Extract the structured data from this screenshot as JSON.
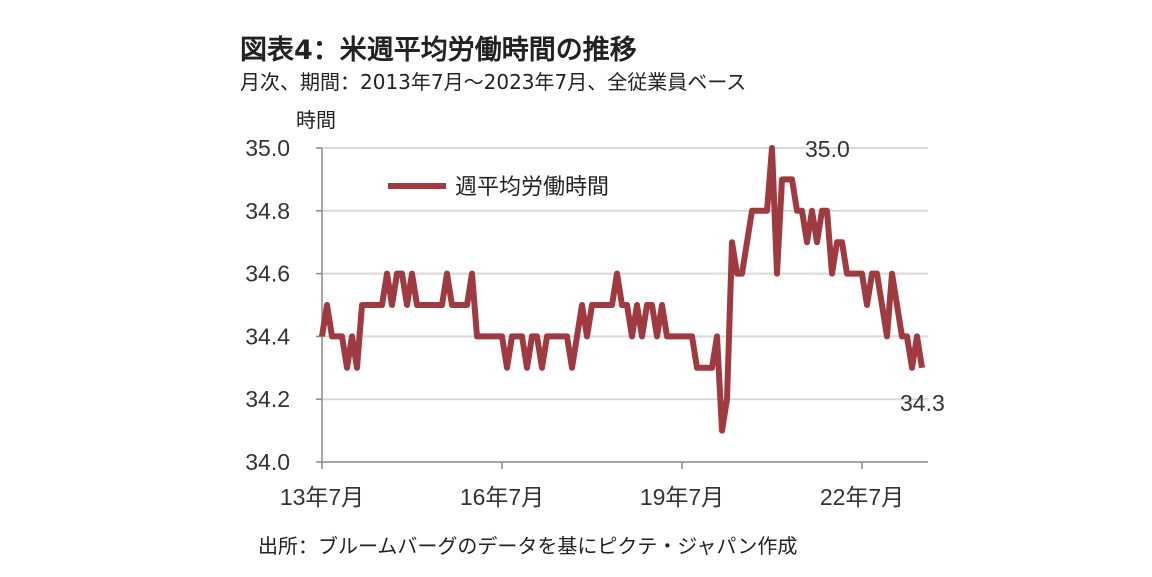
{
  "title": "図表4：米週平均労働時間の推移",
  "subtitle": "月次、期間：2013年7月～2023年7月、全従業員ベース",
  "source": "出所：ブルームバーグのデータを基にピクテ・ジャパン作成",
  "chart_data": {
    "type": "line",
    "title": "図表4：米週平均労働時間の推移",
    "ylabel": "時間",
    "xlabel": "",
    "ylim": [
      34.0,
      35.0
    ],
    "yticks": [
      "34.0",
      "34.2",
      "34.4",
      "34.6",
      "34.8",
      "35.0"
    ],
    "xticks": [
      {
        "index": 0,
        "label": "13年7月"
      },
      {
        "index": 36,
        "label": "16年7月"
      },
      {
        "index": 72,
        "label": "19年7月"
      },
      {
        "index": 108,
        "label": "22年7月"
      }
    ],
    "grid": true,
    "legend": "top-left",
    "x_start": "2013-07",
    "x_end": "2023-07",
    "series": [
      {
        "name": "週平均労働時間",
        "color": "#9e3a40",
        "values": [
          34.4,
          34.5,
          34.4,
          34.4,
          34.4,
          34.3,
          34.4,
          34.3,
          34.5,
          34.5,
          34.5,
          34.5,
          34.5,
          34.6,
          34.5,
          34.6,
          34.6,
          34.5,
          34.6,
          34.5,
          34.5,
          34.5,
          34.5,
          34.5,
          34.5,
          34.6,
          34.5,
          34.5,
          34.5,
          34.5,
          34.6,
          34.4,
          34.4,
          34.4,
          34.4,
          34.4,
          34.4,
          34.3,
          34.4,
          34.4,
          34.4,
          34.3,
          34.4,
          34.4,
          34.3,
          34.4,
          34.4,
          34.4,
          34.4,
          34.4,
          34.3,
          34.4,
          34.5,
          34.4,
          34.5,
          34.5,
          34.5,
          34.5,
          34.5,
          34.6,
          34.5,
          34.5,
          34.4,
          34.5,
          34.4,
          34.5,
          34.5,
          34.4,
          34.5,
          34.4,
          34.4,
          34.4,
          34.4,
          34.4,
          34.4,
          34.3,
          34.3,
          34.3,
          34.3,
          34.4,
          34.1,
          34.2,
          34.7,
          34.6,
          34.6,
          34.7,
          34.8,
          34.8,
          34.8,
          34.8,
          35.0,
          34.6,
          34.9,
          34.9,
          34.9,
          34.8,
          34.8,
          34.7,
          34.8,
          34.7,
          34.8,
          34.8,
          34.6,
          34.7,
          34.7,
          34.6,
          34.6,
          34.6,
          34.6,
          34.5,
          34.6,
          34.6,
          34.5,
          34.4,
          34.6,
          34.5,
          34.4,
          34.4,
          34.3,
          34.4,
          34.3
        ]
      }
    ],
    "annotations": [
      {
        "index": 90,
        "label": "35.0"
      },
      {
        "index": 120,
        "label": "34.3"
      }
    ]
  }
}
